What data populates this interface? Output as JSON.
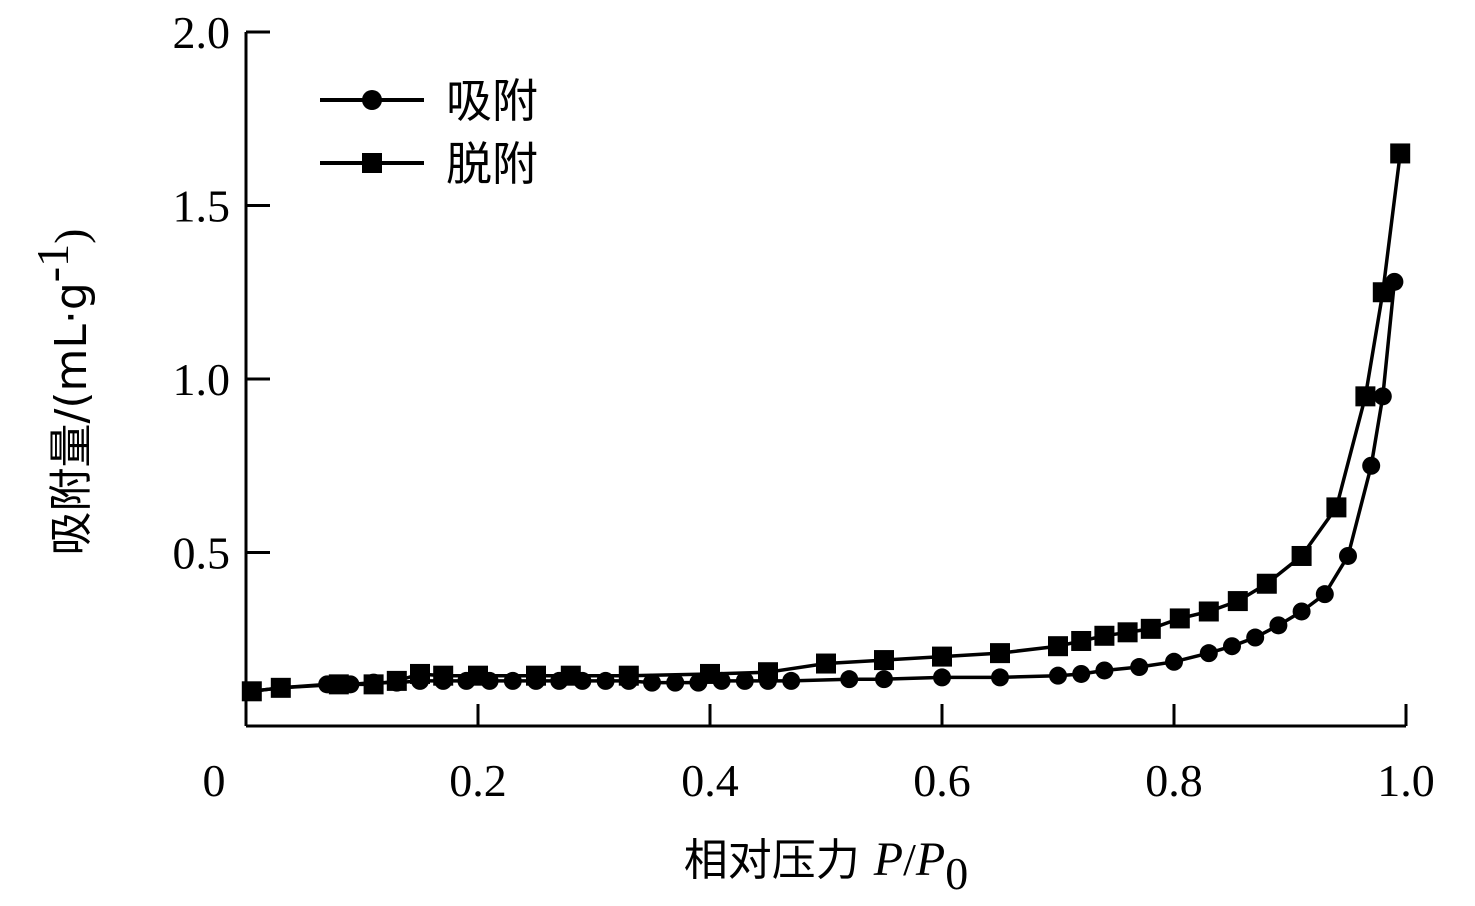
{
  "chart_data": {
    "type": "line",
    "xlabel": {
      "prefix": "相对压力 ",
      "p": "P",
      "slash": "/",
      "p0": "P",
      "p0_sub": "0"
    },
    "ylabel": {
      "prefix": "吸附量/(mL·g",
      "sup": "-1",
      "suffix": ")"
    },
    "xlim": [
      0,
      1.0
    ],
    "ylim": [
      0,
      2.0
    ],
    "x_ticks": [
      {
        "value": 0,
        "label": "0"
      },
      {
        "value": 0.2,
        "label": "0.2"
      },
      {
        "value": 0.4,
        "label": "0.4"
      },
      {
        "value": 0.6,
        "label": "0.6"
      },
      {
        "value": 0.8,
        "label": "0.8"
      },
      {
        "value": 1.0,
        "label": "1.0"
      }
    ],
    "y_ticks": [
      {
        "value": 0.5,
        "label": "0.5"
      },
      {
        "value": 1.0,
        "label": "1.0"
      },
      {
        "value": 1.5,
        "label": "1.5"
      },
      {
        "value": 2.0,
        "label": "2.0"
      }
    ],
    "legend_position": "top-left",
    "grid": false,
    "series": [
      {
        "name": "吸附",
        "marker": "circle",
        "color": "#000000",
        "x": [
          0.005,
          0.03,
          0.07,
          0.09,
          0.11,
          0.13,
          0.15,
          0.17,
          0.19,
          0.21,
          0.23,
          0.25,
          0.27,
          0.29,
          0.31,
          0.33,
          0.35,
          0.37,
          0.39,
          0.41,
          0.43,
          0.45,
          0.47,
          0.52,
          0.55,
          0.6,
          0.65,
          0.7,
          0.72,
          0.74,
          0.77,
          0.8,
          0.83,
          0.85,
          0.87,
          0.89,
          0.91,
          0.93,
          0.95,
          0.97,
          0.98,
          0.99
        ],
        "y": [
          0.1,
          0.11,
          0.12,
          0.12,
          0.125,
          0.125,
          0.13,
          0.13,
          0.13,
          0.13,
          0.13,
          0.13,
          0.13,
          0.13,
          0.13,
          0.13,
          0.125,
          0.125,
          0.125,
          0.13,
          0.13,
          0.13,
          0.13,
          0.135,
          0.135,
          0.14,
          0.14,
          0.145,
          0.15,
          0.16,
          0.17,
          0.185,
          0.21,
          0.23,
          0.255,
          0.29,
          0.33,
          0.38,
          0.49,
          0.75,
          0.95,
          1.28
        ]
      },
      {
        "name": "脱附",
        "marker": "square",
        "color": "#000000",
        "x": [
          0.995,
          0.98,
          0.965,
          0.94,
          0.91,
          0.88,
          0.855,
          0.83,
          0.805,
          0.78,
          0.76,
          0.74,
          0.72,
          0.7,
          0.65,
          0.6,
          0.55,
          0.5,
          0.45,
          0.4,
          0.33,
          0.28,
          0.25,
          0.2,
          0.17,
          0.15,
          0.13,
          0.11,
          0.08,
          0.03,
          0.005
        ],
        "y": [
          1.65,
          1.25,
          0.95,
          0.63,
          0.49,
          0.41,
          0.36,
          0.33,
          0.31,
          0.28,
          0.27,
          0.26,
          0.245,
          0.23,
          0.21,
          0.2,
          0.19,
          0.18,
          0.155,
          0.15,
          0.145,
          0.145,
          0.145,
          0.145,
          0.145,
          0.15,
          0.13,
          0.12,
          0.12,
          0.11,
          0.1
        ]
      }
    ]
  }
}
